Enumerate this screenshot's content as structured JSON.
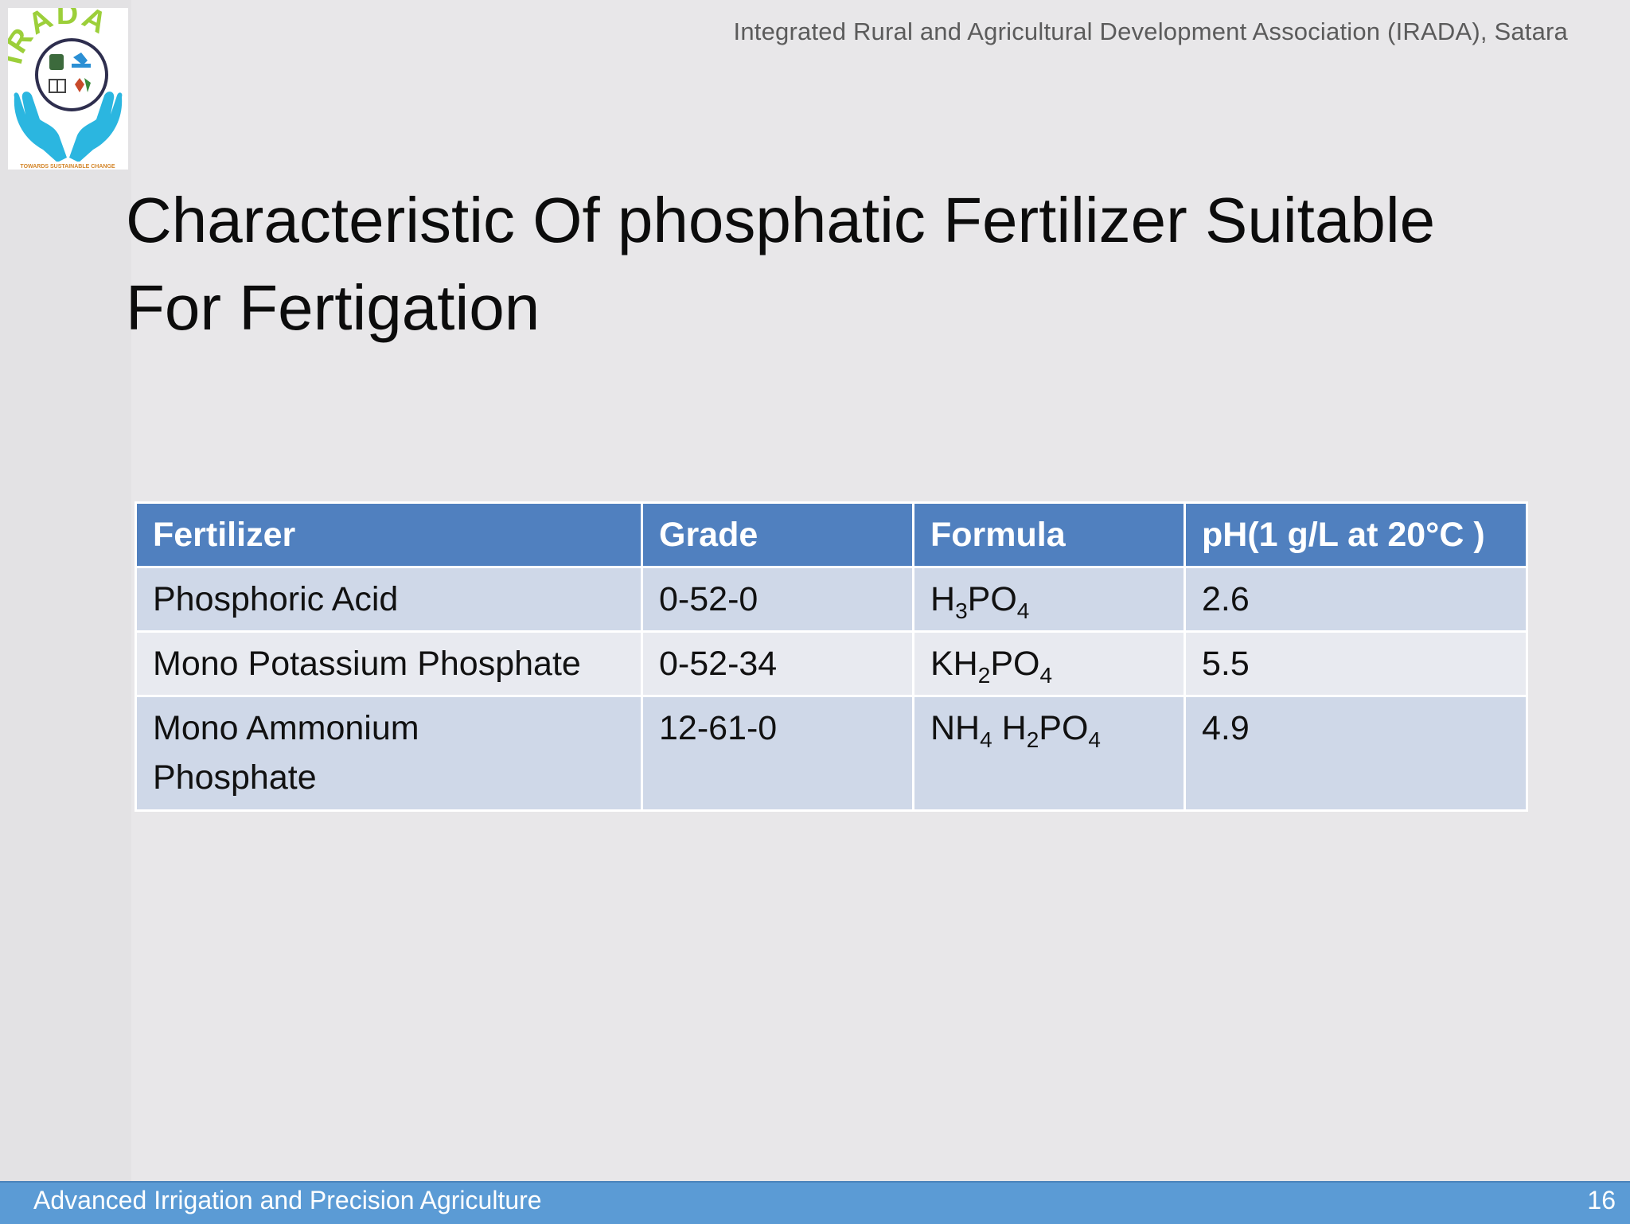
{
  "header": {
    "organization": "Integrated Rural and Agricultural Development Association (IRADA), Satara"
  },
  "logo": {
    "text": "IRADA",
    "tagline": "TOWARDS SUSTAINABLE CHANGE",
    "icon": "irada-hands-logo-icon"
  },
  "title": {
    "line1": "Characteristic Of phosphatic Fertilizer Suitable",
    "line2": "For Fertigation"
  },
  "table": {
    "headers": [
      "Fertilizer",
      "Grade",
      "Formula",
      "pH(1 g/L at 20°C )"
    ],
    "rows": [
      {
        "fertilizer": "Phosphoric Acid",
        "grade": "0-52-0",
        "formula": [
          [
            "H",
            "3"
          ],
          [
            "PO",
            "4"
          ]
        ],
        "ph": "2.6"
      },
      {
        "fertilizer": "Mono Potassium Phosphate",
        "grade": "0-52-34",
        "formula": [
          [
            "KH",
            "2"
          ],
          [
            "PO",
            "4"
          ]
        ],
        "ph": "5.5"
      },
      {
        "fertilizer_line1": "Mono Ammonium",
        "fertilizer_line2": "Phosphate",
        "grade": "12-61-0",
        "formula": [
          [
            "NH",
            "4"
          ],
          [
            " H",
            "2"
          ],
          [
            "PO",
            "4"
          ]
        ],
        "ph": "4.9"
      }
    ]
  },
  "footer": {
    "title": "Advanced Irrigation and Precision Agriculture",
    "page_number": "16"
  },
  "colors": {
    "background": "#e8e7e9",
    "header_row": "#5080bf",
    "row_dark": "#cfd8e8",
    "row_light": "#e8eaf0",
    "footer": "#5b9bd5",
    "logo_hands": "#2bb6e0",
    "logo_text": "#9ccf3a"
  }
}
